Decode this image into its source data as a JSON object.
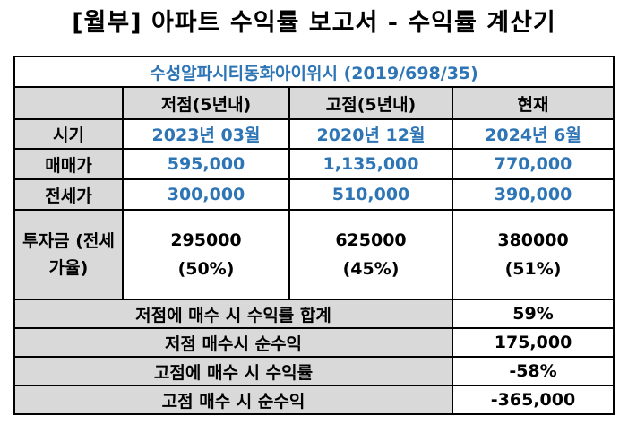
{
  "title": "[월부] 아파트 수익률 보고서 - 수익률 계산기",
  "apartment": "수성알파시티동화아이위시 (2019/698/35)",
  "columns": [
    "저점(5년내)",
    "고점(5년내)",
    "현재"
  ],
  "rows": {
    "time": {
      "label": "시기",
      "values": [
        "2023년 03월",
        "2020년 12월",
        "2024년 6월"
      ]
    },
    "sale": {
      "label": "매매가",
      "values": [
        "595,000",
        "1,135,000",
        "770,000"
      ]
    },
    "jeonse": {
      "label": "전세가",
      "values": [
        "300,000",
        "510,000",
        "390,000"
      ]
    },
    "invest": {
      "label": "투자금 (전세가율)",
      "amounts": [
        "295000",
        "625000",
        "380000"
      ],
      "ratios": [
        "(50%)",
        "(45%)",
        "(51%)"
      ]
    }
  },
  "summary": [
    {
      "label": "저점에 매수 시 수익률 합계",
      "value": "59%"
    },
    {
      "label": "저점 매수시 순수익",
      "value": "175,000"
    },
    {
      "label": "고점에 매수 시 수익률",
      "value": "-58%"
    },
    {
      "label": "고점 매수 시 순수익",
      "value": "-365,000"
    }
  ],
  "colors": {
    "accent_blue": "#2e75b6",
    "header_gray": "#d9d9d9"
  }
}
